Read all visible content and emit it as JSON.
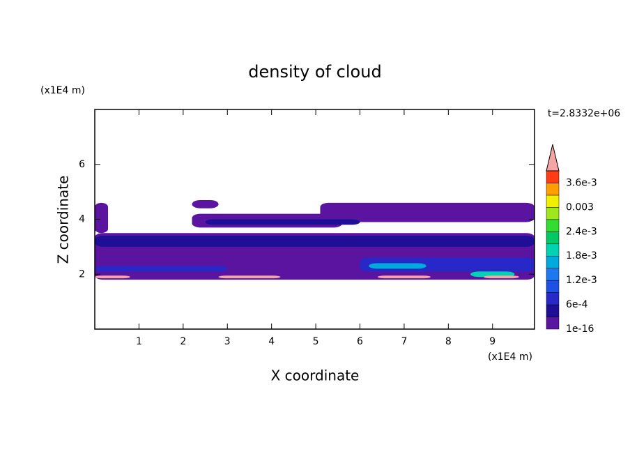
{
  "chart_data": {
    "type": "contour",
    "title": "density of cloud",
    "time_label": "t=2.8332e+06",
    "xlabel": "X coordinate",
    "ylabel": "Z coordinate",
    "x_unit": "(x1E4 m)",
    "y_unit": "(x1E4 m)",
    "xlim": [
      0,
      9.95
    ],
    "ylim": [
      0,
      8
    ],
    "xticks": [
      1,
      2,
      3,
      4,
      5,
      6,
      7,
      8,
      9
    ],
    "yticks": [
      2,
      4,
      6
    ],
    "colorbar": {
      "levels": [
        1e-16,
        0.0003,
        0.0006,
        0.0009,
        0.0012,
        0.0015,
        0.0018,
        0.0021,
        0.0024,
        0.0027,
        0.003,
        0.0033,
        0.0036,
        0.0039
      ],
      "colors": [
        "#5a14a0",
        "#1e0f96",
        "#2828c8",
        "#1e50e6",
        "#1e78f0",
        "#00aadc",
        "#00d2b4",
        "#00c864",
        "#32dc32",
        "#a0e61e",
        "#f0f000",
        "#ffa000",
        "#ff3c14"
      ],
      "over_color": "#f4a4a4",
      "ticks": [
        {
          "value": 1e-16,
          "label": "1e-16"
        },
        {
          "value": 0.0006,
          "label": "6e-4"
        },
        {
          "value": 0.0012,
          "label": "1.2e-3"
        },
        {
          "value": 0.0018,
          "label": "1.8e-3"
        },
        {
          "value": 0.0024,
          "label": "2.4e-3"
        },
        0.003,
        {
          "value": 0.0036,
          "label": "3.6e-3"
        }
      ]
    },
    "layers": [
      {
        "x": [
          0,
          9.95
        ],
        "z": [
          1.8,
          3.5
        ],
        "value": 1e-16
      },
      {
        "x": [
          5.1,
          9.95
        ],
        "z": [
          3.9,
          4.6
        ],
        "value": 1e-16
      },
      {
        "x": [
          2.2,
          5.6
        ],
        "z": [
          3.7,
          4.2
        ],
        "value": 1e-16
      },
      {
        "x": [
          0,
          0.3
        ],
        "z": [
          3.5,
          4.6
        ],
        "value": 1e-16
      },
      {
        "x": [
          2.2,
          2.8
        ],
        "z": [
          4.4,
          4.7
        ],
        "value": 1e-16
      },
      {
        "x": [
          0,
          9.95
        ],
        "z": [
          3.0,
          3.4
        ],
        "value": 0.0003
      },
      {
        "x": [
          2.5,
          6
        ],
        "z": [
          3.8,
          4.0
        ],
        "value": 0.0003
      },
      {
        "x": [
          6,
          9.95
        ],
        "z": [
          2.1,
          2.6
        ],
        "value": 0.0006
      },
      {
        "x": [
          0,
          3
        ],
        "z": [
          2.1,
          2.3
        ],
        "value": 0.0006
      },
      {
        "x": [
          6.2,
          7.5
        ],
        "z": [
          2.2,
          2.4
        ],
        "value": 0.0015
      },
      {
        "x": [
          8.5,
          9.5
        ],
        "z": [
          1.9,
          2.1
        ],
        "value": 0.0018
      },
      {
        "x": [
          0,
          0.8
        ],
        "z": [
          1.85,
          1.95
        ],
        "value": 0.004
      },
      {
        "x": [
          2.8,
          4.2
        ],
        "z": [
          1.85,
          1.95
        ],
        "value": 0.004
      },
      {
        "x": [
          6.4,
          7.6
        ],
        "z": [
          1.85,
          1.95
        ],
        "value": 0.004
      },
      {
        "x": [
          8.8,
          9.6
        ],
        "z": [
          1.85,
          1.95
        ],
        "value": 0.004
      }
    ]
  }
}
